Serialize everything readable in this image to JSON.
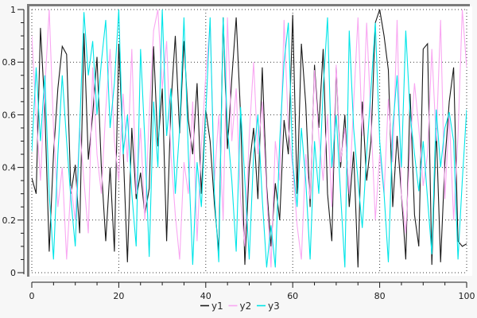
{
  "window": {
    "background": "#f7f7f7",
    "plot_background": "#ffffff",
    "frame_color": "#7b7b7b",
    "grid_color": "#3a3a3a",
    "axis_color": "#1a1a1a",
    "tick_label_color": "#1c1c1c"
  },
  "chart_data": {
    "type": "line",
    "title": "",
    "xlabel": "",
    "ylabel": "",
    "xlim": [
      0,
      100
    ],
    "ylim": [
      0,
      1
    ],
    "grid": "dotted",
    "legend_position": "bottom-center-outside",
    "x_tick_labels": [
      "0",
      "20",
      "40",
      "60",
      "80",
      "100"
    ],
    "x_major_ticks": [
      0,
      20,
      40,
      60,
      80,
      100
    ],
    "x_minor_step": 5,
    "y_tick_labels": [
      "0",
      "0.2",
      "0.4",
      "0.6",
      "0.8",
      "1"
    ],
    "y_major_ticks": [
      0,
      0.2,
      0.4,
      0.6,
      0.8,
      1
    ],
    "y_minor_step": 0.05,
    "x": [
      0,
      1,
      2,
      3,
      4,
      5,
      6,
      7,
      8,
      9,
      10,
      11,
      12,
      13,
      14,
      15,
      16,
      17,
      18,
      19,
      20,
      21,
      22,
      23,
      24,
      25,
      26,
      27,
      28,
      29,
      30,
      31,
      32,
      33,
      34,
      35,
      36,
      37,
      38,
      39,
      40,
      41,
      42,
      43,
      44,
      45,
      46,
      47,
      48,
      49,
      50,
      51,
      52,
      53,
      54,
      55,
      56,
      57,
      58,
      59,
      60,
      61,
      62,
      63,
      64,
      65,
      66,
      67,
      68,
      69,
      70,
      71,
      72,
      73,
      74,
      75,
      76,
      77,
      78,
      79,
      80,
      81,
      82,
      83,
      84,
      85,
      86,
      87,
      88,
      89,
      90,
      91,
      92,
      93,
      94,
      95,
      96,
      97,
      98,
      99,
      100
    ],
    "series": [
      {
        "name": "y1",
        "color": "#1a1a1a",
        "values": [
          0.36,
          0.3,
          0.93,
          0.62,
          0.08,
          0.45,
          0.7,
          0.86,
          0.83,
          0.3,
          0.41,
          0.15,
          0.91,
          0.43,
          0.6,
          0.82,
          0.4,
          0.12,
          0.4,
          0.08,
          0.87,
          0.47,
          0.04,
          0.55,
          0.28,
          0.38,
          0.22,
          0.32,
          0.86,
          0.48,
          0.7,
          0.12,
          0.64,
          0.9,
          0.53,
          0.88,
          0.58,
          0.45,
          0.72,
          0.3,
          0.62,
          0.5,
          0.26,
          0.08,
          0.97,
          0.47,
          0.74,
          0.97,
          0.6,
          0.03,
          0.4,
          0.55,
          0.28,
          0.78,
          0.33,
          0.1,
          0.34,
          0.2,
          0.58,
          0.45,
          0.98,
          0.3,
          0.87,
          0.64,
          0.25,
          0.79,
          0.55,
          0.85,
          0.3,
          0.12,
          0.78,
          0.4,
          0.6,
          0.25,
          0.46,
          0.02,
          0.65,
          0.35,
          0.5,
          0.95,
          1.0,
          0.9,
          0.77,
          0.25,
          0.52,
          0.3,
          0.05,
          0.68,
          0.22,
          0.1,
          0.85,
          0.87,
          0.03,
          0.55,
          0.04,
          0.42,
          0.65,
          0.78,
          0.12,
          0.1,
          0.11
        ]
      },
      {
        "name": "y2",
        "color": "#f9a7f2",
        "values": [
          0.9,
          0.6,
          0.35,
          0.7,
          1.0,
          0.55,
          0.25,
          0.4,
          0.05,
          0.33,
          0.2,
          0.55,
          0.35,
          0.15,
          0.78,
          0.45,
          0.3,
          0.62,
          0.85,
          0.5,
          0.35,
          0.68,
          0.42,
          0.85,
          0.3,
          0.55,
          0.2,
          0.6,
          0.92,
          1.0,
          0.7,
          0.88,
          0.45,
          0.22,
          0.05,
          0.42,
          0.3,
          0.65,
          0.12,
          0.48,
          0.75,
          0.95,
          0.35,
          0.6,
          0.2,
          0.97,
          0.5,
          0.7,
          0.28,
          0.1,
          0.52,
          0.8,
          0.45,
          0.65,
          0.3,
          0.02,
          0.5,
          0.35,
          0.96,
          0.55,
          0.4,
          0.18,
          0.05,
          0.45,
          0.28,
          0.77,
          0.52,
          0.35,
          0.6,
          0.25,
          0.79,
          0.42,
          0.55,
          0.3,
          0.64,
          0.97,
          0.52,
          0.95,
          0.58,
          0.2,
          0.45,
          0.3,
          0.66,
          0.42,
          0.96,
          0.3,
          0.15,
          0.48,
          0.72,
          0.55,
          0.33,
          0.45,
          0.85,
          0.5,
          0.96,
          0.28,
          0.6,
          0.2,
          0.52,
          1.0,
          0.78
        ]
      },
      {
        "name": "y3",
        "color": "#00e5e8",
        "values": [
          0.46,
          0.78,
          0.5,
          0.75,
          0.3,
          0.05,
          0.45,
          0.75,
          0.5,
          0.28,
          0.1,
          0.55,
          0.99,
          0.75,
          0.88,
          0.6,
          0.8,
          0.96,
          0.55,
          0.72,
          1.0,
          0.45,
          0.6,
          0.3,
          0.1,
          0.85,
          0.5,
          0.06,
          0.65,
          0.4,
          1.0,
          0.52,
          0.7,
          0.3,
          0.55,
          0.97,
          0.45,
          0.03,
          0.42,
          0.25,
          0.6,
          0.97,
          0.3,
          0.04,
          0.97,
          0.55,
          0.35,
          0.08,
          0.63,
          0.35,
          0.05,
          0.45,
          0.6,
          0.28,
          0.02,
          0.18,
          0.02,
          0.5,
          0.8,
          0.95,
          0.42,
          0.25,
          0.55,
          0.35,
          0.05,
          0.5,
          0.3,
          0.7,
          0.97,
          0.4,
          0.6,
          0.3,
          0.02,
          0.92,
          0.55,
          0.35,
          0.17,
          0.45,
          0.7,
          0.95,
          0.5,
          0.3,
          0.04,
          0.55,
          0.75,
          0.4,
          0.92,
          0.6,
          0.45,
          0.31,
          0.5,
          0.28,
          0.07,
          0.62,
          0.4,
          0.55,
          0.61,
          0.5,
          0.05,
          0.35,
          0.62
        ]
      }
    ]
  }
}
